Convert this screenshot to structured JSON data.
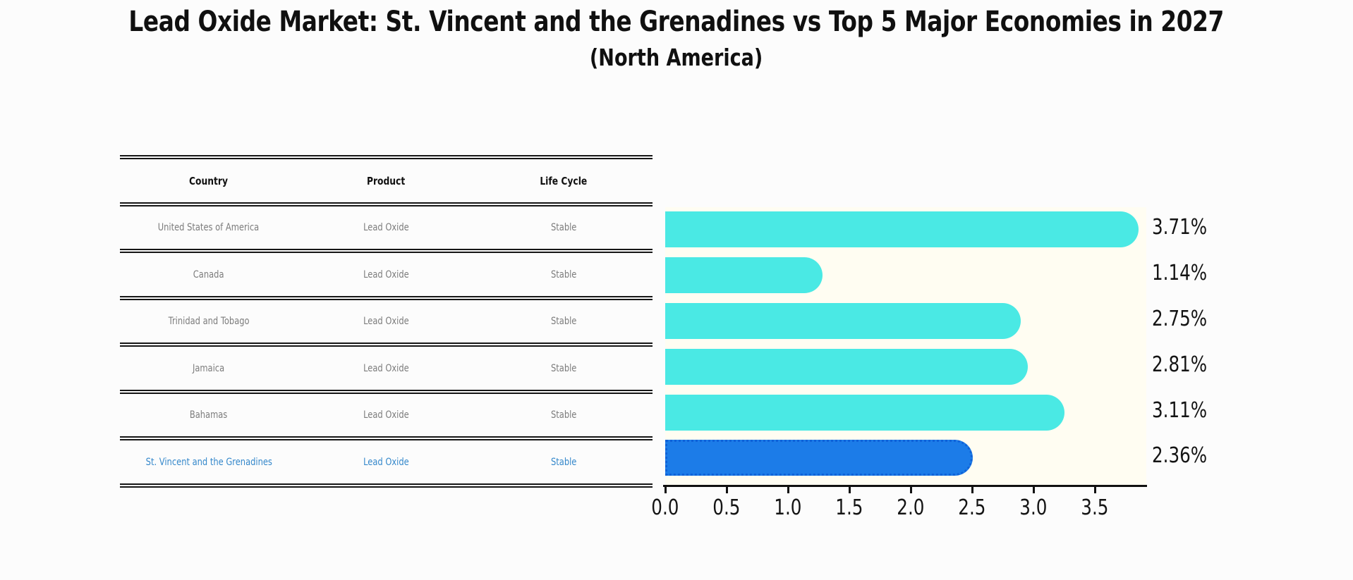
{
  "title": "Lead Oxide Market: St. Vincent and the Grenadines vs Top 5 Major Economies in 2027",
  "subtitle": "(North America)",
  "table": {
    "headers": [
      "Country",
      "Product",
      "Life Cycle"
    ],
    "rows": [
      {
        "country": "United States of America",
        "product": "Lead Oxide",
        "life_cycle": "Stable"
      },
      {
        "country": "Canada",
        "product": "Lead Oxide",
        "life_cycle": "Stable"
      },
      {
        "country": "Trinidad and Tobago",
        "product": "Lead Oxide",
        "life_cycle": "Stable"
      },
      {
        "country": "Jamaica",
        "product": "Lead Oxide",
        "life_cycle": "Stable"
      },
      {
        "country": "Bahamas",
        "product": "Lead Oxide",
        "life_cycle": "Stable"
      },
      {
        "country": "St. Vincent and the Grenadines",
        "product": "Lead Oxide",
        "life_cycle": "Stable"
      }
    ],
    "highlighted_row": "St. Vincent and the Grenadines"
  },
  "chart_data": {
    "type": "bar",
    "orientation": "horizontal",
    "categories": [
      "United States of America",
      "Canada",
      "Trinidad and Tobago",
      "Jamaica",
      "Bahamas",
      "St. Vincent and the Grenadines"
    ],
    "values": [
      3.71,
      1.14,
      2.75,
      2.81,
      3.11,
      2.36
    ],
    "value_labels": [
      "3.71%",
      "1.14%",
      "2.75%",
      "2.81%",
      "3.11%",
      "2.36%"
    ],
    "xlim": [
      0.0,
      3.9
    ],
    "xticks": [
      0.0,
      0.5,
      1.0,
      1.5,
      2.0,
      2.5,
      3.0,
      3.5
    ],
    "xtick_labels": [
      "0.0",
      "0.5",
      "1.0",
      "1.5",
      "2.0",
      "2.5",
      "3.0",
      "3.5"
    ],
    "grid": false,
    "legend": false,
    "bar_color": "#4AE9E4",
    "highlight_index": 5,
    "highlight_bar_color": "#1C7CE8",
    "highlight_border_color": "#0F62D8",
    "highlight_text_color": "#3588CB",
    "plot_background_color": "#FFFDF2"
  }
}
